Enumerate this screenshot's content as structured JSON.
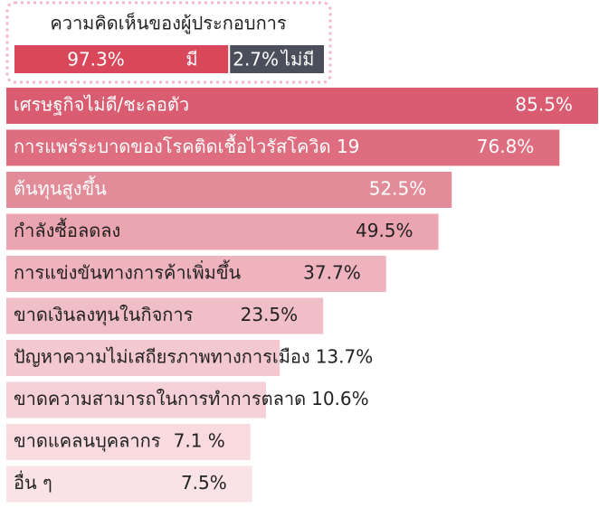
{
  "header": {
    "title": "ความคิดเห็นของผู้ประกอบการ",
    "series": [
      {
        "name": "มี",
        "value": 97.3,
        "value_label": "97.3%",
        "color": "#d9475a"
      },
      {
        "name": "ไม่มี",
        "value": 2.7,
        "value_label": "2.7%",
        "color": "#4b4f5b"
      }
    ]
  },
  "chart_data": {
    "type": "bar",
    "categories": [
      "เศรษฐกิจไม่ดี/ชะลอตัว",
      "การแพร่ระบาดของโรคติดเชื้อไวรัสโควิด 19",
      "ต้นทุนสูงขึ้น",
      "กำลังซื้อลดลง",
      "การแข่งขันทางการค้าเพิ่มขึ้น",
      "ขาดเงินลงทุนในกิจการ",
      "ปัญหาความไม่เสถียรภาพทางการเมือง",
      "ขาดความสามารถในการทำการตลาด",
      "ขาดแคลนบุคลากร",
      "อื่น ๆ"
    ],
    "values": [
      85.5,
      76.8,
      52.5,
      49.5,
      37.7,
      23.5,
      13.7,
      10.6,
      7.1,
      7.5
    ],
    "value_labels": [
      "85.5%",
      "76.8%",
      "52.5%",
      "49.5%",
      "37.7%",
      "23.5%",
      "13.7%",
      "10.6%",
      "7.1 %",
      "7.5%"
    ],
    "colors": [
      "#d95c70",
      "#de6d7f",
      "#e38c99",
      "#eaa5b0",
      "#eeb3bc",
      "#f0bec6",
      "#f3c8cf",
      "#f5d0d6",
      "#f8dadf",
      "#fae3e6"
    ]
  }
}
